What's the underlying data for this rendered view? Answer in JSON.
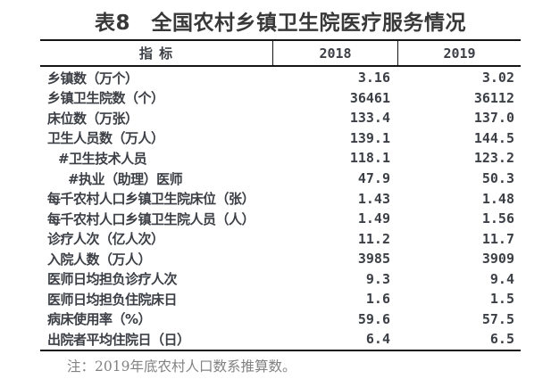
{
  "title": "表8　全国农村乡镇卫生院医疗服务情况",
  "table": {
    "columns": [
      "指 标",
      "2018",
      "2019"
    ],
    "rows": [
      {
        "label": "乡镇数（万个）",
        "indent": 0,
        "y2018": "3.16",
        "y2019": "3.02"
      },
      {
        "label": "乡镇卫生院数（个）",
        "indent": 0,
        "y2018": "36461",
        "y2019": "36112"
      },
      {
        "label": "床位数（万张）",
        "indent": 0,
        "y2018": "133.4",
        "y2019": "137.0"
      },
      {
        "label": "卫生人员数（万人）",
        "indent": 0,
        "y2018": "139.1",
        "y2019": "144.5"
      },
      {
        "label": "#卫生技术人员",
        "indent": 1,
        "y2018": "118.1",
        "y2019": "123.2"
      },
      {
        "label": "#执业（助理）医师",
        "indent": 2,
        "y2018": "47.9",
        "y2019": "50.3"
      },
      {
        "label": "每千农村人口乡镇卫生院床位（张）",
        "indent": 0,
        "y2018": "1.43",
        "y2019": "1.48"
      },
      {
        "label": "每千农村人口乡镇卫生院人员（人）",
        "indent": 0,
        "y2018": "1.49",
        "y2019": "1.56"
      },
      {
        "label": "诊疗人次（亿人次）",
        "indent": 0,
        "y2018": "11.2",
        "y2019": "11.7"
      },
      {
        "label": "入院人数（万人）",
        "indent": 0,
        "y2018": "3985",
        "y2019": "3909"
      },
      {
        "label": "医师日均担负诊疗人次",
        "indent": 0,
        "y2018": "9.3",
        "y2019": "9.4"
      },
      {
        "label": "医师日均担负住院床日",
        "indent": 0,
        "y2018": "1.6",
        "y2019": "1.5"
      },
      {
        "label": "病床使用率（%）",
        "indent": 0,
        "y2018": "59.6",
        "y2019": "57.5"
      },
      {
        "label": "出院者平均住院日（日）",
        "indent": 0,
        "y2018": "6.4",
        "y2019": "6.5"
      }
    ]
  },
  "note": "注：2019年底农村人口数系推算数。",
  "colors": {
    "title_text": "#383838",
    "body_text": "#3c4046",
    "note_text": "#828282",
    "border": "#151515",
    "background": "#ffffff"
  }
}
